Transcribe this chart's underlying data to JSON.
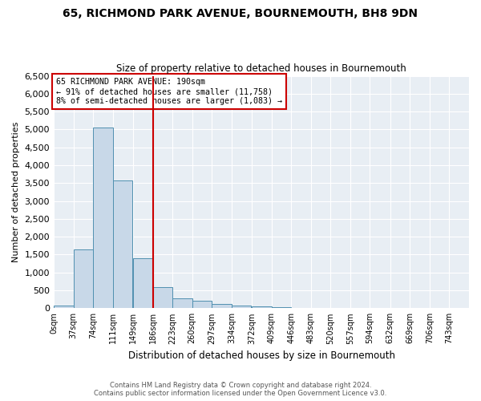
{
  "title1": "65, RICHMOND PARK AVENUE, BOURNEMOUTH, BH8 9DN",
  "title2": "Size of property relative to detached houses in Bournemouth",
  "xlabel": "Distribution of detached houses by size in Bournemouth",
  "ylabel": "Number of detached properties",
  "footer1": "Contains HM Land Registry data © Crown copyright and database right 2024.",
  "footer2": "Contains public sector information licensed under the Open Government Licence v3.0.",
  "annotation_line1": "65 RICHMOND PARK AVENUE: 190sqm",
  "annotation_line2": "← 91% of detached houses are smaller (11,758)",
  "annotation_line3": "8% of semi-detached houses are larger (1,083) →",
  "bar_color": "#c8d8e8",
  "bar_edge_color": "#5090b0",
  "vline_color": "#cc0000",
  "annotation_box_color": "#cc0000",
  "categories": [
    "0sqm",
    "37sqm",
    "74sqm",
    "111sqm",
    "149sqm",
    "186sqm",
    "223sqm",
    "260sqm",
    "297sqm",
    "334sqm",
    "372sqm",
    "409sqm",
    "446sqm",
    "483sqm",
    "520sqm",
    "557sqm",
    "594sqm",
    "632sqm",
    "669sqm",
    "706sqm",
    "743sqm"
  ],
  "bin_edges": [
    0,
    37,
    74,
    111,
    149,
    186,
    223,
    260,
    297,
    334,
    372,
    409,
    446,
    483,
    520,
    557,
    594,
    632,
    669,
    706,
    743
  ],
  "values": [
    75,
    1650,
    5050,
    3580,
    1400,
    580,
    270,
    200,
    115,
    75,
    55,
    35,
    10,
    5,
    0,
    0,
    0,
    0,
    0,
    0
  ],
  "ylim": [
    0,
    6500
  ],
  "yticks": [
    0,
    500,
    1000,
    1500,
    2000,
    2500,
    3000,
    3500,
    4000,
    4500,
    5000,
    5500,
    6000,
    6500
  ],
  "vline_x_index": 5,
  "background_color": "#e8eef4"
}
